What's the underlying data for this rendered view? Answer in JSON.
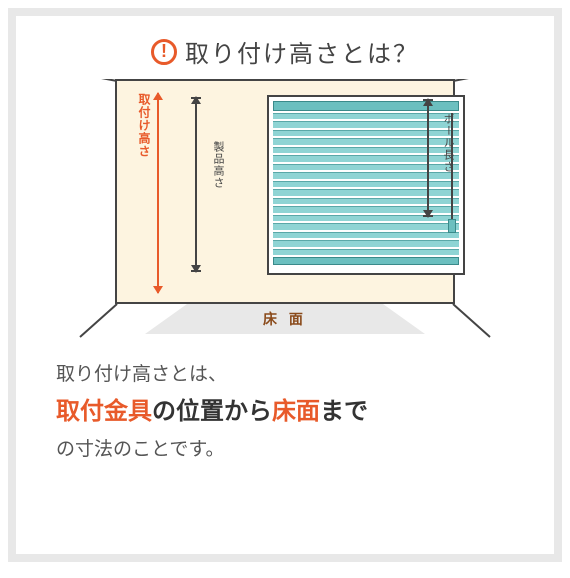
{
  "title": "取り付け高さとは？",
  "labels": {
    "install_height": "取付け高さ",
    "product_height": "製品高さ",
    "pole_length": "ポール長さ",
    "floor": "床 面"
  },
  "description": {
    "line1": "取り付け高さとは、",
    "bracket": "取付金具",
    "from": "の位置から",
    "floor_ref": "床面",
    "to": "まで",
    "line3": "の寸法のことです。"
  },
  "colors": {
    "accent": "#e85a2a",
    "wall": "#fdf4e0",
    "blind": "#8fd4d4",
    "blind_dark": "#6bbfbf",
    "frame": "#e8e8e8",
    "text": "#444"
  },
  "diagram": {
    "slat_count": 17
  }
}
